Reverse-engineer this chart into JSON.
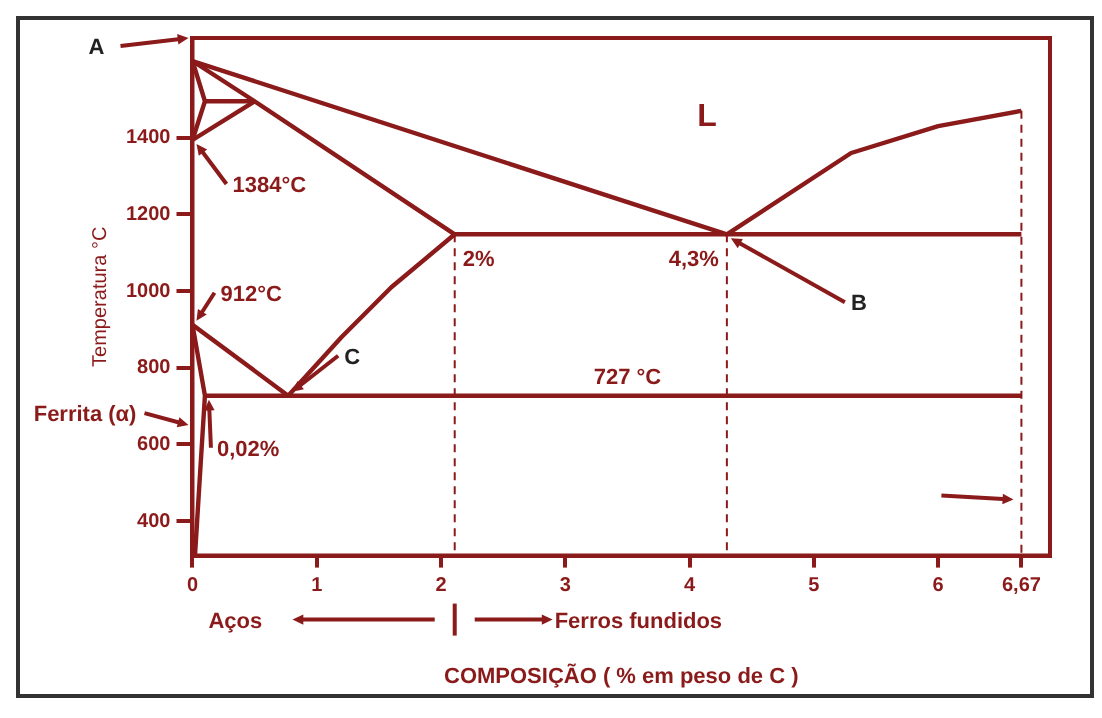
{
  "chart_data": {
    "type": "line",
    "xlabel": "COMPOSIÇÃO ( % em peso de C )",
    "ylabel": "Temperatura °C",
    "xlim": [
      0,
      6.9
    ],
    "ylim": [
      310,
      1660
    ],
    "xticks": [
      0,
      1,
      2,
      3,
      4,
      5,
      6,
      {
        "value": 6.67,
        "label": "6,67"
      }
    ],
    "yticks": [
      400,
      600,
      800,
      1000,
      1200,
      1400
    ],
    "grid": false,
    "legend": false,
    "marker": "none",
    "line_style": "solid",
    "series": [
      {
        "color": "#8b1a1a",
        "x": [
          0,
          4.3
        ],
        "values": [
          1600,
          1148
        ]
      },
      {
        "color": "#8b1a1a",
        "x": [
          4.3,
          5.3,
          6.0,
          6.67
        ],
        "values": [
          1148,
          1360,
          1430,
          1470
        ]
      },
      {
        "color": "#8b1a1a",
        "x": [
          0,
          0.1,
          0
        ],
        "values": [
          1600,
          1495,
          1394
        ]
      },
      {
        "color": "#8b1a1a",
        "x": [
          0,
          0.5,
          2.11
        ],
        "values": [
          1600,
          1495,
          1148
        ]
      },
      {
        "color": "#8b1a1a",
        "x": [
          0.1,
          0.5
        ],
        "values": [
          1495,
          1495
        ]
      },
      {
        "color": "#8b1a1a",
        "x": [
          0,
          0.5
        ],
        "values": [
          1394,
          1495
        ]
      },
      {
        "color": "#8b1a1a",
        "x": [
          2.11,
          6.67
        ],
        "values": [
          1148,
          1148
        ]
      },
      {
        "color": "#8b1a1a",
        "x": [
          0.77,
          1.2,
          1.6,
          2.11
        ],
        "values": [
          727,
          880,
          1010,
          1148
        ]
      },
      {
        "color": "#8b1a1a",
        "x": [
          0,
          0.77
        ],
        "values": [
          912,
          727
        ]
      },
      {
        "color": "#8b1a1a",
        "x": [
          0,
          0.1,
          0.02
        ],
        "values": [
          912,
          727,
          310
        ]
      },
      {
        "color": "#8b1a1a",
        "x": [
          0.1,
          6.67
        ],
        "values": [
          727,
          727
        ]
      },
      {
        "color": "#8b1a1a",
        "x": [
          2.11,
          2.11
        ],
        "values": [
          1148,
          310
        ],
        "line_style": "dashed"
      },
      {
        "color": "#8b1a1a",
        "x": [
          4.3,
          4.3
        ],
        "values": [
          1148,
          310
        ],
        "line_style": "dashed"
      },
      {
        "color": "#8b1a1a",
        "x": [
          6.67,
          6.67
        ],
        "values": [
          1470,
          310
        ],
        "line_style": "dashed"
      }
    ],
    "annotations": [
      "A",
      {
        "text": "1384°C",
        "x": 0,
        "y": 1394
      },
      "L",
      {
        "text": "2%",
        "x": 2.11,
        "y": 1148
      },
      {
        "text": "4,3%",
        "x": 4.3,
        "y": 1148
      },
      {
        "text": "B",
        "x": 4.3,
        "y": 1148
      },
      {
        "text": "912°C",
        "x": 0,
        "y": 912
      },
      {
        "text": "C",
        "x": 0.77,
        "y": 727
      },
      {
        "text": "727 °C",
        "x": 3.5,
        "y": 727
      },
      {
        "text": "Ferrita (α)",
        "x": 0,
        "y": 640
      },
      {
        "text": "0,02%",
        "x": 0.1,
        "y": 727
      },
      "Aços",
      "Ferros fundidos"
    ]
  }
}
